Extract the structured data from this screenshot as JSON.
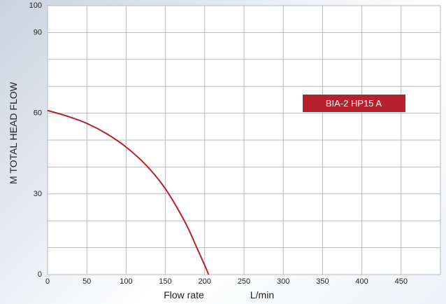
{
  "chart_data": {
    "type": "line",
    "xlabel": "Flow rate",
    "xunit": "L/min",
    "ylabel": "M TOTAL HEAD FLOW",
    "xlim": [
      0,
      500
    ],
    "ylim": [
      0,
      100
    ],
    "x_ticks": [
      0,
      50,
      100,
      150,
      200,
      250,
      300,
      350,
      400,
      450
    ],
    "y_tick_labels": [
      0,
      30,
      60,
      90,
      100
    ],
    "grid": true,
    "legend_position": "top-right",
    "series": [
      {
        "name": "BIA-2 HP15 A",
        "color": "#b5222d",
        "x": [
          0,
          25,
          50,
          75,
          100,
          125,
          150,
          175,
          190,
          200,
          205
        ],
        "y": [
          61,
          58.9,
          56.2,
          52.4,
          47.4,
          40.8,
          31.9,
          19.5,
          10,
          3.5,
          0
        ]
      }
    ]
  }
}
